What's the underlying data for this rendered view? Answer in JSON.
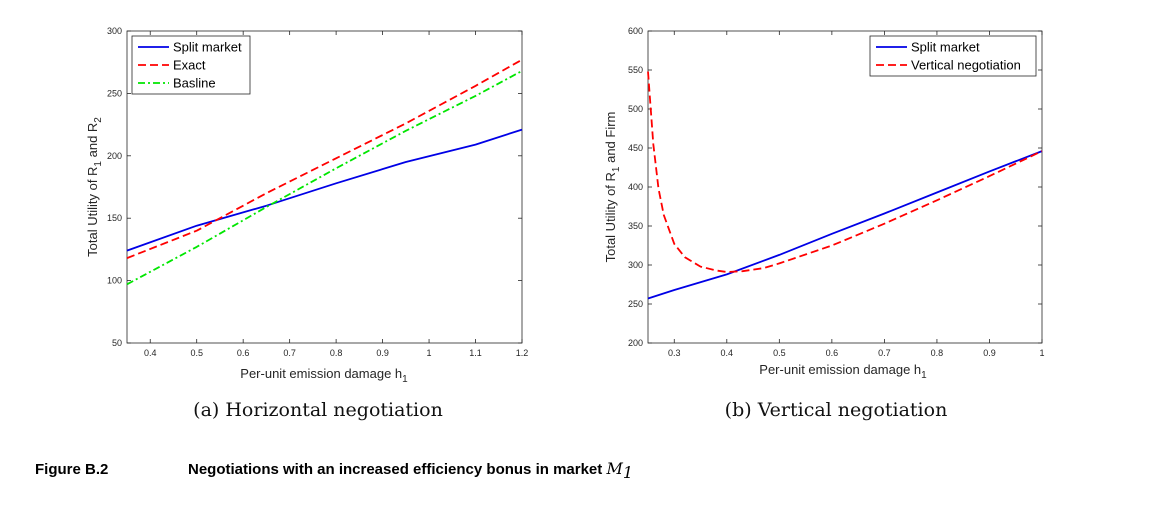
{
  "figure": {
    "label": "Figure B.2",
    "title": "Negotiations with an increased efficiency bonus in market ",
    "title_math": "M",
    "title_math_sub": "1"
  },
  "colors": {
    "blue": "#0000e6",
    "red": "#ff0000",
    "green": "#00e600"
  },
  "chart_data": [
    {
      "type": "line",
      "caption": "(a) Horizontal negotiation",
      "xlabel": "Per-unit emission damage h",
      "xlabel_sub": "1",
      "ylabel_parts": [
        "Total Utility of R",
        "1",
        " and R",
        "2"
      ],
      "xlim": [
        0.35,
        1.2
      ],
      "ylim": [
        50,
        300
      ],
      "xticks": [
        0.4,
        0.5,
        0.6,
        0.7,
        0.8,
        0.9,
        1,
        1.1,
        1.2
      ],
      "xtick_labels": [
        "0.4",
        "0.5",
        "0.6",
        "0.7",
        "0.8",
        "0.9",
        "1",
        "1.1",
        "1.2"
      ],
      "yticks": [
        50,
        100,
        150,
        200,
        250,
        300
      ],
      "ytick_labels": [
        "50",
        "100",
        "150",
        "200",
        "250",
        "300"
      ],
      "legend_position": "top-left",
      "series": [
        {
          "name": "Split market",
          "color": "#0000e6",
          "style": "solid",
          "x": [
            0.35,
            0.5,
            0.65,
            0.8,
            0.95,
            1.1,
            1.2
          ],
          "y": [
            124,
            144,
            160,
            178,
            195,
            209,
            221
          ]
        },
        {
          "name": "Exact",
          "color": "#ff0000",
          "style": "dashed",
          "x": [
            0.35,
            0.5,
            0.65,
            0.8,
            0.95,
            1.1,
            1.2
          ],
          "y": [
            118,
            140,
            170,
            198,
            226,
            256,
            277
          ]
        },
        {
          "name": "Basline",
          "color": "#00e600",
          "style": "dashdot",
          "x": [
            0.35,
            0.5,
            0.65,
            0.8,
            0.95,
            1.1,
            1.2
          ],
          "y": [
            97,
            127,
            159,
            190,
            220,
            248,
            268
          ]
        }
      ]
    },
    {
      "type": "line",
      "caption": "(b) Vertical negotiation",
      "xlabel": "Per-unit emission damage h",
      "xlabel_sub": "1",
      "ylabel_parts": [
        "Total Utility of R",
        "1",
        " and Firm",
        ""
      ],
      "xlim": [
        0.25,
        1
      ],
      "ylim": [
        200,
        600
      ],
      "xticks": [
        0.3,
        0.4,
        0.5,
        0.6,
        0.7,
        0.8,
        0.9,
        1
      ],
      "xtick_labels": [
        "0.3",
        "0.4",
        "0.5",
        "0.6",
        "0.7",
        "0.8",
        "0.9",
        "1"
      ],
      "yticks": [
        200,
        250,
        300,
        350,
        400,
        450,
        500,
        550,
        600
      ],
      "ytick_labels": [
        "200",
        "250",
        "300",
        "350",
        "400",
        "450",
        "500",
        "550",
        "600"
      ],
      "legend_position": "top-right",
      "series": [
        {
          "name": "Split market",
          "color": "#0000e6",
          "style": "solid",
          "x": [
            0.25,
            0.3,
            0.4,
            0.5,
            0.6,
            0.7,
            0.8,
            0.9,
            1.0
          ],
          "y": [
            257,
            268,
            288,
            313,
            340,
            366,
            393,
            420,
            446
          ]
        },
        {
          "name": "Vertical negotiation",
          "color": "#ff0000",
          "style": "dashed",
          "x": [
            0.25,
            0.26,
            0.27,
            0.28,
            0.3,
            0.32,
            0.35,
            0.38,
            0.4,
            0.43,
            0.47,
            0.5,
            0.6,
            0.7,
            0.8,
            0.9,
            1.0
          ],
          "y": [
            548,
            455,
            398,
            364,
            327,
            310,
            298,
            293,
            291,
            292,
            296,
            302,
            325,
            353,
            383,
            414,
            446
          ]
        }
      ]
    }
  ]
}
